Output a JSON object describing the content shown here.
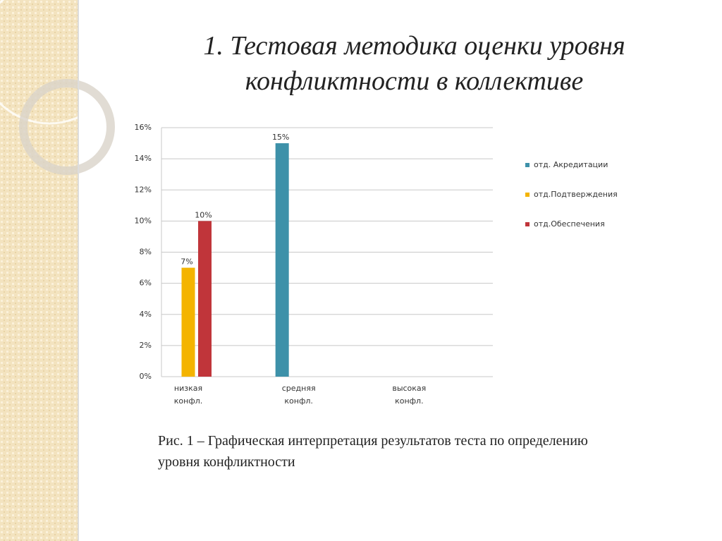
{
  "title": "1. Тестовая методика оценки уровня конфликтности в коллективе",
  "chart_data": {
    "type": "bar",
    "categories": [
      "низкая конфл.",
      "средняя конфл.",
      "высокая конфл."
    ],
    "series": [
      {
        "name": "отд. Акредитации",
        "color": "#3d91a9",
        "values": [
          null,
          15,
          null
        ],
        "value_labels": [
          null,
          "15%",
          null
        ]
      },
      {
        "name": "отд.Подтверждения",
        "color": "#f4b400",
        "values": [
          7,
          null,
          null
        ],
        "value_labels": [
          "7%",
          null,
          null
        ]
      },
      {
        "name": "отд.Обеспечения",
        "color": "#c0353a",
        "values": [
          10,
          null,
          null
        ],
        "value_labels": [
          "10%",
          null,
          null
        ]
      }
    ],
    "ylim": [
      0,
      16
    ],
    "yticks": [
      {
        "value": 0,
        "label": "0%"
      },
      {
        "value": 2,
        "label": "2%"
      },
      {
        "value": 4,
        "label": "4%"
      },
      {
        "value": 6,
        "label": "6%"
      },
      {
        "value": 8,
        "label": "8%"
      },
      {
        "value": 10,
        "label": "10%"
      },
      {
        "value": 12,
        "label": "12%"
      },
      {
        "value": 14,
        "label": "14%"
      },
      {
        "value": 16,
        "label": "16%"
      }
    ],
    "grid": true,
    "legend": "right"
  },
  "caption": "Рис. 1 – Графическая интерпретация результатов теста по определению уровня конфликтности"
}
